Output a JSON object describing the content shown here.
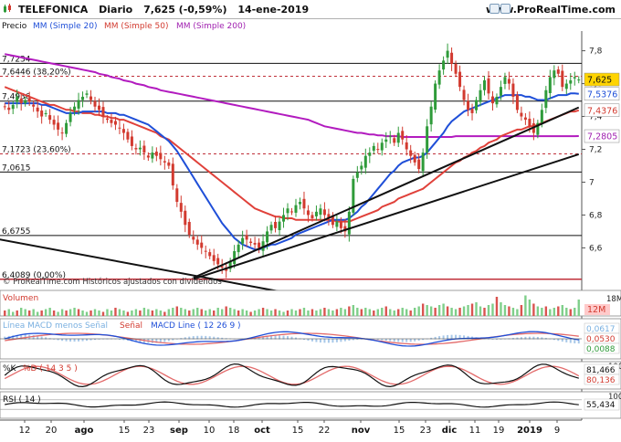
{
  "header": {
    "symbol": "TELEFONICA",
    "period": "Diario",
    "quote": "7,625 (-0,59%)",
    "date": "14-ene-2019",
    "site": "www.ProRealTime.com"
  },
  "legend": {
    "price": "Precio",
    "ma20": "MM (Simple 20)",
    "ma50": "MM (Simple 50)",
    "ma200": "MM (Simple 200)"
  },
  "copyright": "© ProRealTime.com Históricos ajustados con dividendos",
  "colors": {
    "ma20": "#1f4fd8",
    "ma50": "#e0413a",
    "ma200": "#b21bbf",
    "up": "#2f9b3a",
    "down": "#d23a2f",
    "text_blue": "#1f4fd8",
    "text_red": "#d23a2f",
    "text_purple": "#a020b0"
  },
  "chart_data": [
    {
      "type": "candlestick",
      "title": "TELEFONICA Diario",
      "ylim": [
        6.43,
        7.92
      ],
      "yticks": [
        "7,8",
        "7,6",
        "7,4",
        "7,2",
        "7",
        "6,8",
        "6,6"
      ],
      "xticks": [
        "12",
        "20",
        "ago",
        "15",
        "23",
        "sep",
        "10",
        "18",
        "oct",
        "15",
        "22",
        "nov",
        "15",
        "23",
        "dic",
        "11",
        "19",
        "2019",
        "9"
      ],
      "levels": [
        {
          "label": "7,7234",
          "value": 7.7234,
          "style": "solid"
        },
        {
          "label": "7,6446 (38,20%)",
          "value": 7.6446,
          "style": "dashed"
        },
        {
          "label": "7,4936",
          "value": 7.4936,
          "style": "solid"
        },
        {
          "label": "7,1723 (23,60%)",
          "value": 7.1723,
          "style": "dashed"
        },
        {
          "label": "7,0615",
          "value": 7.0615,
          "style": "solid"
        },
        {
          "label": "6,6755",
          "value": 6.6755,
          "style": "solid"
        },
        {
          "label": "6,4089 (0,00%)",
          "value": 6.4089,
          "style": "solid"
        }
      ],
      "value_tags": [
        {
          "label": "7,625",
          "kind": "last"
        },
        {
          "label": "7,5376",
          "kind": "ma20"
        },
        {
          "label": "7,4376",
          "kind": "ma50"
        },
        {
          "label": "7,2805",
          "kind": "ma200"
        }
      ],
      "closes": [
        7.46,
        7.44,
        7.47,
        7.52,
        7.48,
        7.5,
        7.49,
        7.46,
        7.43,
        7.4,
        7.42,
        7.38,
        7.35,
        7.32,
        7.3,
        7.36,
        7.42,
        7.46,
        7.5,
        7.52,
        7.54,
        7.5,
        7.46,
        7.44,
        7.4,
        7.38,
        7.36,
        7.35,
        7.33,
        7.3,
        7.26,
        7.22,
        7.2,
        7.21,
        7.18,
        7.15,
        7.18,
        7.16,
        7.14,
        7.12,
        7.1,
        6.98,
        6.88,
        6.82,
        6.74,
        6.68,
        6.65,
        6.62,
        6.6,
        6.58,
        6.55,
        6.52,
        6.5,
        6.48,
        6.46,
        6.52,
        6.58,
        6.62,
        6.66,
        6.65,
        6.63,
        6.62,
        6.6,
        6.64,
        6.7,
        6.74,
        6.72,
        6.76,
        6.8,
        6.84,
        6.82,
        6.86,
        6.88,
        6.84,
        6.8,
        6.78,
        6.82,
        6.84,
        6.8,
        6.78,
        6.74,
        6.76,
        6.72,
        6.7,
        6.82,
        7.02,
        7.06,
        7.1,
        7.16,
        7.18,
        7.22,
        7.2,
        7.24,
        7.26,
        7.28,
        7.24,
        7.3,
        7.26,
        7.2,
        7.16,
        7.12,
        7.08,
        7.18,
        7.34,
        7.46,
        7.6,
        7.68,
        7.74,
        7.8,
        7.72,
        7.66,
        7.58,
        7.5,
        7.44,
        7.42,
        7.5,
        7.56,
        7.62,
        7.54,
        7.48,
        7.52,
        7.58,
        7.64,
        7.6,
        7.52,
        7.44,
        7.4,
        7.38,
        7.34,
        7.3,
        7.36,
        7.44,
        7.56,
        7.64,
        7.68,
        7.66,
        7.58,
        7.6,
        7.62,
        7.64,
        7.625
      ],
      "ma20": [
        7.48,
        7.48,
        7.48,
        7.48,
        7.48,
        7.48,
        7.48,
        7.48,
        7.48,
        7.47,
        7.47,
        7.46,
        7.45,
        7.44,
        7.43,
        7.42,
        7.42,
        7.42,
        7.42,
        7.43,
        7.43,
        7.43,
        7.43,
        7.43,
        7.43,
        7.42,
        7.42,
        7.42,
        7.41,
        7.41,
        7.4,
        7.39,
        7.38,
        7.37,
        7.36,
        7.35,
        7.33,
        7.31,
        7.29,
        7.27,
        7.25,
        7.22,
        7.19,
        7.15,
        7.11,
        7.07,
        7.03,
        6.99,
        6.95,
        6.91,
        6.87,
        6.83,
        6.79,
        6.75,
        6.72,
        6.69,
        6.66,
        6.64,
        6.62,
        6.61,
        6.6,
        6.59,
        6.59,
        6.6,
        6.61,
        6.62,
        6.62,
        6.63,
        6.64,
        6.65,
        6.66,
        6.68,
        6.69,
        6.7,
        6.71,
        6.72,
        6.73,
        6.74,
        6.75,
        6.76,
        6.77,
        6.77,
        6.77,
        6.77,
        6.78,
        6.8,
        6.82,
        6.85,
        6.87,
        6.9,
        6.93,
        6.96,
        6.99,
        7.02,
        7.05,
        7.07,
        7.1,
        7.12,
        7.13,
        7.14,
        7.15,
        7.15,
        7.16,
        7.18,
        7.21,
        7.24,
        7.27,
        7.3,
        7.34,
        7.37,
        7.39,
        7.41,
        7.43,
        7.44,
        7.45,
        7.46,
        7.47,
        7.48,
        7.49,
        7.5,
        7.51,
        7.52,
        7.53,
        7.53,
        7.53,
        7.53,
        7.53,
        7.52,
        7.52,
        7.51,
        7.5,
        7.5,
        7.5,
        7.51,
        7.52,
        7.53,
        7.53,
        7.53,
        7.54,
        7.54,
        7.5376
      ],
      "ma50": [
        7.58,
        7.57,
        7.56,
        7.55,
        7.54,
        7.53,
        7.52,
        7.51,
        7.5,
        7.49,
        7.48,
        7.47,
        7.47,
        7.46,
        7.45,
        7.44,
        7.44,
        7.43,
        7.43,
        7.42,
        7.42,
        7.42,
        7.41,
        7.41,
        7.4,
        7.4,
        7.39,
        7.39,
        7.38,
        7.38,
        7.37,
        7.36,
        7.35,
        7.34,
        7.33,
        7.32,
        7.31,
        7.3,
        7.28,
        7.27,
        7.26,
        7.24,
        7.22,
        7.2,
        7.18,
        7.16,
        7.14,
        7.12,
        7.1,
        7.08,
        7.06,
        7.04,
        7.02,
        7.0,
        6.98,
        6.96,
        6.94,
        6.92,
        6.9,
        6.88,
        6.86,
        6.84,
        6.83,
        6.82,
        6.81,
        6.8,
        6.79,
        6.79,
        6.78,
        6.78,
        6.78,
        6.77,
        6.77,
        6.77,
        6.77,
        6.77,
        6.77,
        6.77,
        6.77,
        6.77,
        6.77,
        6.76,
        6.76,
        6.76,
        6.76,
        6.77,
        6.78,
        6.79,
        6.8,
        6.81,
        6.82,
        6.83,
        6.85,
        6.86,
        6.87,
        6.88,
        6.9,
        6.91,
        6.92,
        6.93,
        6.94,
        6.95,
        6.96,
        6.98,
        7.0,
        7.02,
        7.04,
        7.06,
        7.08,
        7.1,
        7.12,
        7.13,
        7.15,
        7.16,
        7.18,
        7.19,
        7.21,
        7.22,
        7.24,
        7.25,
        7.26,
        7.28,
        7.29,
        7.3,
        7.31,
        7.32,
        7.32,
        7.33,
        7.34,
        7.34,
        7.35,
        7.36,
        7.37,
        7.38,
        7.39,
        7.4,
        7.41,
        7.42,
        7.43,
        7.43,
        7.4376
      ],
      "ma200": [
        7.78,
        7.775,
        7.77,
        7.765,
        7.76,
        7.755,
        7.75,
        7.745,
        7.74,
        7.735,
        7.73,
        7.725,
        7.72,
        7.715,
        7.71,
        7.705,
        7.7,
        7.695,
        7.69,
        7.685,
        7.68,
        7.675,
        7.67,
        7.66,
        7.655,
        7.65,
        7.64,
        7.635,
        7.63,
        7.62,
        7.615,
        7.61,
        7.6,
        7.595,
        7.59,
        7.58,
        7.575,
        7.57,
        7.56,
        7.555,
        7.55,
        7.545,
        7.54,
        7.535,
        7.53,
        7.525,
        7.52,
        7.515,
        7.51,
        7.505,
        7.5,
        7.495,
        7.49,
        7.485,
        7.48,
        7.475,
        7.47,
        7.465,
        7.46,
        7.455,
        7.45,
        7.445,
        7.44,
        7.435,
        7.43,
        7.425,
        7.42,
        7.415,
        7.41,
        7.405,
        7.4,
        7.395,
        7.39,
        7.385,
        7.38,
        7.37,
        7.36,
        7.35,
        7.34,
        7.335,
        7.33,
        7.325,
        7.32,
        7.315,
        7.31,
        7.305,
        7.3,
        7.3,
        7.295,
        7.29,
        7.29,
        7.285,
        7.285,
        7.28,
        7.28,
        7.28,
        7.28,
        7.275,
        7.275,
        7.275,
        7.275,
        7.275,
        7.275,
        7.275,
        7.275,
        7.275,
        7.275,
        7.275,
        7.275,
        7.275,
        7.28,
        7.28,
        7.28,
        7.28,
        7.28,
        7.28,
        7.28,
        7.28,
        7.28,
        7.28,
        7.28,
        7.28,
        7.28,
        7.28,
        7.28,
        7.28,
        7.28,
        7.28,
        7.28,
        7.28,
        7.28,
        7.28,
        7.28,
        7.28,
        7.28,
        7.28,
        7.28,
        7.28,
        7.28,
        7.28,
        7.2805
      ],
      "trendlines": [
        {
          "from": [
            46,
            6.418
          ],
          "to": [
            140,
            7.455
          ]
        },
        {
          "from": [
            46,
            6.41
          ],
          "to": [
            140,
            7.17
          ]
        },
        {
          "from": [
            -2,
            6.655
          ],
          "to": [
            68,
            6.33
          ]
        }
      ]
    },
    {
      "type": "bar",
      "title": "Volumen",
      "value_tag": "12M",
      "top_tick": "18M",
      "values": [
        4,
        5,
        3,
        4,
        6,
        5,
        4,
        5,
        3,
        4,
        5,
        6,
        4,
        3,
        5,
        4,
        5,
        6,
        5,
        4,
        3,
        4,
        5,
        4,
        3,
        5,
        4,
        6,
        5,
        4,
        3,
        4,
        5,
        4,
        6,
        5,
        4,
        5,
        4,
        3,
        5,
        6,
        7,
        6,
        5,
        4,
        5,
        6,
        5,
        4,
        5,
        4,
        6,
        5,
        7,
        6,
        5,
        4,
        5,
        4,
        3,
        4,
        5,
        6,
        5,
        4,
        5,
        4,
        3,
        4,
        5,
        4,
        5,
        6,
        4,
        5,
        4,
        5,
        6,
        5,
        4,
        5,
        6,
        5,
        7,
        8,
        6,
        5,
        6,
        5,
        4,
        5,
        6,
        7,
        5,
        4,
        5,
        6,
        5,
        4,
        6,
        7,
        9,
        8,
        7,
        6,
        8,
        9,
        7,
        6,
        5,
        6,
        7,
        8,
        9,
        10,
        7,
        6,
        8,
        9,
        14,
        10,
        8,
        7,
        6,
        5,
        8,
        15,
        12,
        9,
        7,
        6,
        7,
        5,
        6,
        7,
        8,
        6,
        5,
        6,
        12
      ]
    },
    {
      "type": "line",
      "title": "Línea MACD menos Señal",
      "series": [
        {
          "name": "Señal"
        },
        {
          "name": "MACD Line ( 12 26 9 )"
        }
      ],
      "value_tags": [
        "0,0617",
        "0,0530",
        "0,0088"
      ]
    },
    {
      "type": "line",
      "series": [
        {
          "name": "%K"
        },
        {
          "name": "%D ( 14 3 5 )"
        }
      ],
      "value_tags": [
        "81,466",
        "80,136"
      ],
      "top_tick": "100"
    },
    {
      "type": "line",
      "title": "RSI ( 14 )",
      "value_tags": [
        "55,434"
      ],
      "top_tick": "100"
    }
  ]
}
